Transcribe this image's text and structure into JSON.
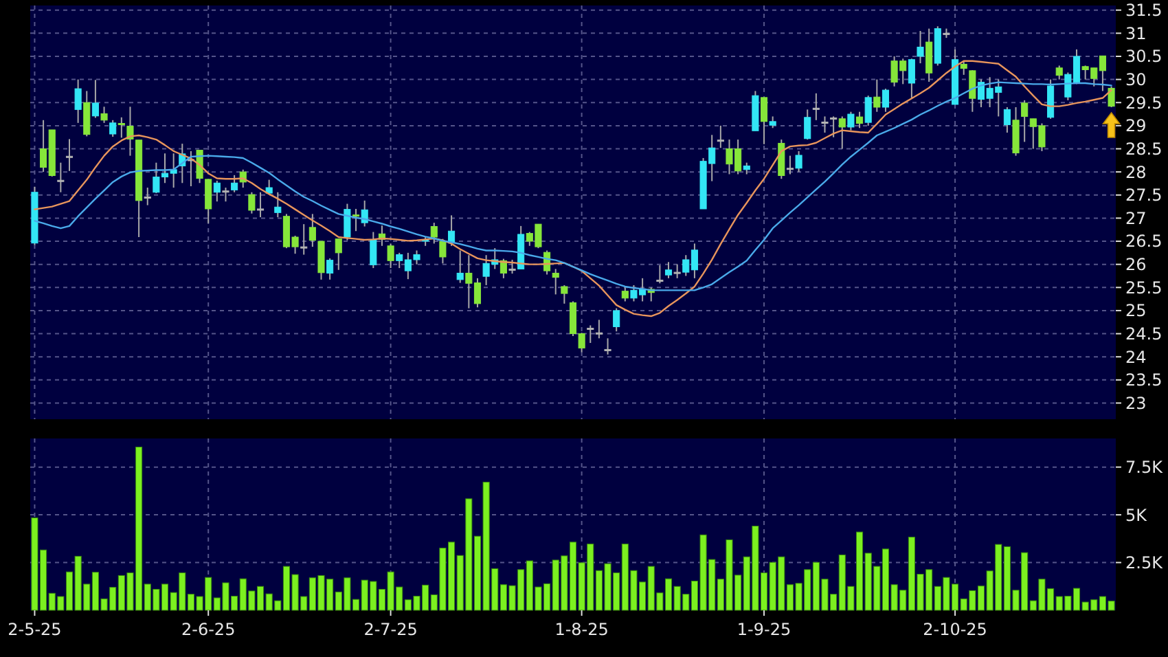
{
  "chart_data": [
    {
      "type": "candlestick",
      "tick_labels": "y",
      "grid": true,
      "categories": [
        null,
        null,
        null,
        null,
        null,
        null,
        null,
        null,
        null,
        null,
        null,
        null,
        null,
        null,
        null,
        null,
        null,
        null,
        null,
        null,
        null,
        null,
        null,
        null,
        null,
        null,
        null,
        null,
        null,
        null,
        null,
        null,
        null,
        null,
        null,
        null,
        null,
        null,
        null,
        null,
        null,
        null,
        null,
        null,
        null,
        null,
        null,
        null,
        null,
        null,
        null,
        null,
        null,
        null,
        null,
        null,
        null,
        null,
        null,
        null,
        null,
        null,
        null,
        null,
        null,
        null,
        null,
        null,
        null,
        null,
        null,
        null,
        null,
        null,
        null,
        null,
        null,
        null,
        null,
        null,
        null,
        null,
        null,
        null,
        null,
        null,
        null,
        null,
        null,
        null,
        null,
        null,
        null,
        null,
        null,
        null,
        null,
        null,
        null,
        null,
        null,
        null,
        null,
        null,
        null,
        null,
        null,
        null,
        null,
        null,
        null,
        null,
        null,
        null,
        null,
        null,
        null,
        null,
        null,
        null,
        null,
        null,
        null,
        null,
        null
      ],
      "ylim": [
        22.65,
        31.6
      ],
      "yticks": [
        23,
        23.5,
        24,
        24.5,
        25,
        25.5,
        26,
        26.5,
        27,
        27.5,
        28,
        28.5,
        29,
        29.5,
        30,
        30.5,
        31,
        31.5
      ],
      "ohlc": [
        [
          26.46,
          27.68,
          26.42,
          27.56
        ],
        [
          28.5,
          29.12,
          28.0,
          28.1
        ],
        [
          28.91,
          28.91,
          27.9,
          27.92
        ],
        [
          27.82,
          28.2,
          27.56,
          27.82
        ],
        [
          28.34,
          28.71,
          28.02,
          28.34
        ],
        [
          29.35,
          30.0,
          29.06,
          29.8
        ],
        [
          29.5,
          29.75,
          28.77,
          28.81
        ],
        [
          29.21,
          29.99,
          29.17,
          29.49
        ],
        [
          29.26,
          29.41,
          29.06,
          29.12
        ],
        [
          28.82,
          29.12,
          28.76,
          29.06
        ],
        [
          29.05,
          29.18,
          28.74,
          29.02
        ],
        [
          28.99,
          29.41,
          28.35,
          28.71
        ],
        [
          28.69,
          28.69,
          26.59,
          27.38
        ],
        [
          27.46,
          27.66,
          27.28,
          27.46
        ],
        [
          27.56,
          28.2,
          27.54,
          27.89
        ],
        [
          27.89,
          28.4,
          27.76,
          27.97
        ],
        [
          27.97,
          28.4,
          27.66,
          28.05
        ],
        [
          28.13,
          28.61,
          27.76,
          28.39
        ],
        [
          28.27,
          28.45,
          27.69,
          28.27
        ],
        [
          28.47,
          28.47,
          27.76,
          27.86
        ],
        [
          27.84,
          27.84,
          26.89,
          27.2
        ],
        [
          27.56,
          27.81,
          27.36,
          27.76
        ],
        [
          27.59,
          27.66,
          27.36,
          27.59
        ],
        [
          27.61,
          27.93,
          27.56,
          27.76
        ],
        [
          28.0,
          28.05,
          27.66,
          27.78
        ],
        [
          27.51,
          27.56,
          27.1,
          27.17
        ],
        [
          27.2,
          27.56,
          27.02,
          27.2
        ],
        [
          27.54,
          27.83,
          27.51,
          27.66
        ],
        [
          27.12,
          27.56,
          27.02,
          27.24
        ],
        [
          27.04,
          27.09,
          26.35,
          26.38
        ],
        [
          26.59,
          26.62,
          26.23,
          26.38
        ],
        [
          26.38,
          26.87,
          26.21,
          26.38
        ],
        [
          26.8,
          27.09,
          26.38,
          26.52
        ],
        [
          26.5,
          26.5,
          25.67,
          25.82
        ],
        [
          25.81,
          26.13,
          25.67,
          26.09
        ],
        [
          26.55,
          26.55,
          25.88,
          26.25
        ],
        [
          26.59,
          27.31,
          26.52,
          27.19
        ],
        [
          27.07,
          27.2,
          26.72,
          27.05
        ],
        [
          26.9,
          27.38,
          26.82,
          27.18
        ],
        [
          25.99,
          26.7,
          25.92,
          26.54
        ],
        [
          26.66,
          26.84,
          26.4,
          26.54
        ],
        [
          26.4,
          26.45,
          25.92,
          26.08
        ],
        [
          26.08,
          26.25,
          25.92,
          26.21
        ],
        [
          25.86,
          26.25,
          25.68,
          26.1
        ],
        [
          26.1,
          26.3,
          26.0,
          26.21
        ],
        [
          26.5,
          26.6,
          26.4,
          26.53
        ],
        [
          26.82,
          26.9,
          26.45,
          26.59
        ],
        [
          26.5,
          26.55,
          26.02,
          26.16
        ],
        [
          26.46,
          27.06,
          26.4,
          26.72
        ],
        [
          25.67,
          26.3,
          25.6,
          25.81
        ],
        [
          25.81,
          26.2,
          25.05,
          25.59
        ],
        [
          25.6,
          25.7,
          25.07,
          25.15
        ],
        [
          25.74,
          26.2,
          25.55,
          26.02
        ],
        [
          26.0,
          26.35,
          25.9,
          26.1
        ],
        [
          26.08,
          26.12,
          25.7,
          25.81
        ],
        [
          25.9,
          26.1,
          25.8,
          25.9
        ],
        [
          25.9,
          26.83,
          25.9,
          26.65
        ],
        [
          26.67,
          26.7,
          26.4,
          26.5
        ],
        [
          26.87,
          26.87,
          26.35,
          26.38
        ],
        [
          26.26,
          26.3,
          25.78,
          25.86
        ],
        [
          25.81,
          25.9,
          25.35,
          25.72
        ],
        [
          25.52,
          25.55,
          25.15,
          25.37
        ],
        [
          25.17,
          25.2,
          24.45,
          24.5
        ],
        [
          24.5,
          24.52,
          24.1,
          24.19
        ],
        [
          24.62,
          24.68,
          24.3,
          24.62
        ],
        [
          24.52,
          24.8,
          24.4,
          24.52
        ],
        [
          24.16,
          24.4,
          24.05,
          24.16
        ],
        [
          24.65,
          25.05,
          24.55,
          25.0
        ],
        [
          25.42,
          25.5,
          25.2,
          25.27
        ],
        [
          25.27,
          25.55,
          25.2,
          25.44
        ],
        [
          25.34,
          25.7,
          25.2,
          25.47
        ],
        [
          25.46,
          25.5,
          25.2,
          25.39
        ],
        [
          25.66,
          25.98,
          25.59,
          25.66
        ],
        [
          25.77,
          26.05,
          25.7,
          25.88
        ],
        [
          25.83,
          26.0,
          25.7,
          25.83
        ],
        [
          25.83,
          26.2,
          25.75,
          26.1
        ],
        [
          25.88,
          26.45,
          25.7,
          26.31
        ],
        [
          27.2,
          28.3,
          27.2,
          28.23
        ],
        [
          28.18,
          28.8,
          27.8,
          28.52
        ],
        [
          28.69,
          29.0,
          28.52,
          28.69
        ],
        [
          28.5,
          28.7,
          27.95,
          28.17
        ],
        [
          28.5,
          28.7,
          27.95,
          28.02
        ],
        [
          28.05,
          28.2,
          27.95,
          28.13
        ],
        [
          28.89,
          29.75,
          28.89,
          29.65
        ],
        [
          29.61,
          29.61,
          28.6,
          29.09
        ],
        [
          29.01,
          29.2,
          28.95,
          29.09
        ],
        [
          28.62,
          28.7,
          27.85,
          27.92
        ],
        [
          28.08,
          28.35,
          27.95,
          28.08
        ],
        [
          28.08,
          28.45,
          28.0,
          28.36
        ],
        [
          28.72,
          29.35,
          28.7,
          29.18
        ],
        [
          29.38,
          29.7,
          29.12,
          29.38
        ],
        [
          29.08,
          29.2,
          28.85,
          29.08
        ],
        [
          29.17,
          29.2,
          28.75,
          29.17
        ],
        [
          29.15,
          29.2,
          28.5,
          28.97
        ],
        [
          28.97,
          29.3,
          28.9,
          29.25
        ],
        [
          29.19,
          29.3,
          28.95,
          29.05
        ],
        [
          29.07,
          29.65,
          29.0,
          29.61
        ],
        [
          29.62,
          30.0,
          29.3,
          29.4
        ],
        [
          29.4,
          29.8,
          29.3,
          29.77
        ],
        [
          30.4,
          30.5,
          29.85,
          29.94
        ],
        [
          30.4,
          30.45,
          29.9,
          30.19
        ],
        [
          29.92,
          30.45,
          29.6,
          30.43
        ],
        [
          30.5,
          31.05,
          30.35,
          30.7
        ],
        [
          30.81,
          31.1,
          29.95,
          30.14
        ],
        [
          30.35,
          31.15,
          30.3,
          31.1
        ],
        [
          31.0,
          31.1,
          30.9,
          31.0
        ],
        [
          29.46,
          30.65,
          29.46,
          30.43
        ],
        [
          30.33,
          30.4,
          30.1,
          30.24
        ],
        [
          30.19,
          30.2,
          29.3,
          29.59
        ],
        [
          29.57,
          30.0,
          29.4,
          29.94
        ],
        [
          29.59,
          30.05,
          29.4,
          29.81
        ],
        [
          29.72,
          30.0,
          29.2,
          29.84
        ],
        [
          29.02,
          29.4,
          28.85,
          29.35
        ],
        [
          29.12,
          29.4,
          28.35,
          28.41
        ],
        [
          29.49,
          29.55,
          28.65,
          29.2
        ],
        [
          29.15,
          29.15,
          28.5,
          28.98
        ],
        [
          29.0,
          29.05,
          28.45,
          28.54
        ],
        [
          29.18,
          30.0,
          29.15,
          29.86
        ],
        [
          30.25,
          30.3,
          30.0,
          30.09
        ],
        [
          29.62,
          30.15,
          29.55,
          30.11
        ],
        [
          29.94,
          30.65,
          29.9,
          30.5
        ],
        [
          30.28,
          30.3,
          30.0,
          30.21
        ],
        [
          30.25,
          30.25,
          29.85,
          30.02
        ],
        [
          30.51,
          30.51,
          29.75,
          30.19
        ],
        [
          29.81,
          29.85,
          29.4,
          29.42
        ]
      ],
      "colors": [
        "#33e6f5",
        "#86e63a",
        "#86e63a",
        "#b4b4b4",
        "#b4b4b4",
        "#33e6f5",
        "#86e63a",
        "#33e6f5",
        "#86e63a",
        "#33e6f5",
        "#86e63a",
        "#86e63a",
        "#86e63a",
        "#b4b4b4",
        "#33e6f5",
        "#33e6f5",
        "#33e6f5",
        "#33e6f5",
        "#b4b4b4",
        "#86e63a",
        "#86e63a",
        "#33e6f5",
        "#b4b4b4",
        "#33e6f5",
        "#86e63a",
        "#86e63a",
        "#b4b4b4",
        "#33e6f5",
        "#33e6f5",
        "#86e63a",
        "#86e63a",
        "#b4b4b4",
        "#86e63a",
        "#86e63a",
        "#33e6f5",
        "#86e63a",
        "#33e6f5",
        "#86e63a",
        "#33e6f5",
        "#33e6f5",
        "#86e63a",
        "#86e63a",
        "#33e6f5",
        "#33e6f5",
        "#33e6f5",
        "#33e6f5",
        "#86e63a",
        "#86e63a",
        "#33e6f5",
        "#33e6f5",
        "#86e63a",
        "#86e63a",
        "#33e6f5",
        "#33e6f5",
        "#86e63a",
        "#b4b4b4",
        "#33e6f5",
        "#86e63a",
        "#86e63a",
        "#86e63a",
        "#86e63a",
        "#86e63a",
        "#86e63a",
        "#86e63a",
        "#b4b4b4",
        "#b4b4b4",
        "#b4b4b4",
        "#33e6f5",
        "#86e63a",
        "#33e6f5",
        "#33e6f5",
        "#86e63a",
        "#b4b4b4",
        "#33e6f5",
        "#b4b4b4",
        "#33e6f5",
        "#33e6f5",
        "#33e6f5",
        "#33e6f5",
        "#b4b4b4",
        "#86e63a",
        "#86e63a",
        "#33e6f5",
        "#33e6f5",
        "#86e63a",
        "#33e6f5",
        "#86e63a",
        "#b4b4b4",
        "#33e6f5",
        "#33e6f5",
        "#b4b4b4",
        "#b4b4b4",
        "#b4b4b4",
        "#86e63a",
        "#33e6f5",
        "#86e63a",
        "#33e6f5",
        "#86e63a",
        "#33e6f5",
        "#86e63a",
        "#86e63a",
        "#33e6f5",
        "#33e6f5",
        "#86e63a",
        "#33e6f5",
        "#b4b4b4",
        "#33e6f5",
        "#86e63a",
        "#86e63a",
        "#33e6f5",
        "#33e6f5",
        "#33e6f5",
        "#33e6f5",
        "#86e63a",
        "#86e63a",
        "#86e63a",
        "#86e63a",
        "#33e6f5",
        "#86e63a",
        "#33e6f5",
        "#33e6f5",
        "#86e63a",
        "#86e63a",
        "#86e63a",
        "#86e63a"
      ],
      "series": [
        {
          "type": "line",
          "color": "#e8955c",
          "values": [
            27.19,
            27.22,
            27.25,
            27.31,
            27.37,
            27.6,
            27.83,
            28.1,
            28.35,
            28.55,
            28.68,
            28.77,
            28.79,
            28.75,
            28.7,
            28.58,
            28.45,
            28.37,
            28.29,
            28.15,
            27.97,
            27.86,
            27.85,
            27.85,
            27.86,
            27.76,
            27.63,
            27.52,
            27.42,
            27.31,
            27.19,
            27.07,
            26.95,
            26.84,
            26.72,
            26.59,
            26.57,
            26.55,
            26.53,
            26.54,
            26.56,
            26.55,
            26.53,
            26.51,
            26.52,
            26.54,
            26.56,
            26.52,
            26.45,
            26.33,
            26.23,
            26.13,
            26.09,
            26.07,
            26.05,
            26.04,
            26.02,
            26.0,
            26.0,
            26.01,
            26.02,
            26.03,
            25.95,
            25.86,
            25.7,
            25.54,
            25.33,
            25.12,
            25.02,
            24.93,
            24.9,
            24.88,
            24.95,
            25.1,
            25.23,
            25.37,
            25.52,
            25.8,
            26.1,
            26.44,
            26.76,
            27.07,
            27.33,
            27.6,
            27.85,
            28.15,
            28.45,
            28.55,
            28.57,
            28.58,
            28.63,
            28.73,
            28.83,
            28.9,
            28.88,
            28.86,
            28.85,
            29.04,
            29.24,
            29.36,
            29.48,
            29.59,
            29.7,
            29.82,
            29.98,
            30.14,
            30.28,
            30.4,
            30.4,
            30.38,
            30.36,
            30.34,
            30.2,
            30.06,
            29.85,
            29.65,
            29.46,
            29.42,
            29.42,
            29.45,
            29.49,
            29.52,
            29.56,
            29.6,
            29.77
          ]
        },
        {
          "type": "line",
          "color": "#4aaaea",
          "values": [
            26.94,
            26.89,
            26.83,
            26.78,
            26.83,
            27.04,
            27.23,
            27.42,
            27.6,
            27.78,
            27.9,
            27.99,
            28.02,
            28.03,
            28.04,
            28.04,
            28.05,
            28.19,
            28.33,
            28.34,
            28.35,
            28.34,
            28.33,
            28.32,
            28.3,
            28.2,
            28.09,
            27.98,
            27.84,
            27.71,
            27.58,
            27.46,
            27.37,
            27.27,
            27.18,
            27.09,
            27.05,
            27.01,
            26.98,
            26.93,
            26.88,
            26.82,
            26.77,
            26.71,
            26.65,
            26.6,
            26.56,
            26.51,
            26.48,
            26.44,
            26.39,
            26.34,
            26.3,
            26.3,
            26.29,
            26.28,
            26.25,
            26.2,
            26.16,
            26.12,
            26.09,
            26.03,
            25.95,
            25.87,
            25.79,
            25.72,
            25.65,
            25.58,
            25.52,
            25.49,
            25.47,
            25.44,
            25.44,
            25.44,
            25.44,
            25.44,
            25.44,
            25.5,
            25.57,
            25.7,
            25.83,
            25.95,
            26.08,
            26.31,
            26.53,
            26.78,
            26.95,
            27.12,
            27.28,
            27.45,
            27.62,
            27.79,
            27.97,
            28.16,
            28.33,
            28.48,
            28.63,
            28.79,
            28.87,
            28.95,
            29.04,
            29.13,
            29.24,
            29.33,
            29.43,
            29.52,
            29.6,
            29.7,
            29.8,
            29.87,
            29.91,
            29.94,
            29.93,
            29.92,
            29.91,
            29.9,
            29.9,
            29.89,
            29.9,
            29.91,
            29.92,
            29.92,
            29.9,
            29.89,
            29.87
          ]
        }
      ]
    },
    {
      "type": "bar",
      "grid": true,
      "color": "#7cf020",
      "categories": [
        "2-5-25",
        null,
        null,
        null,
        null,
        null,
        null,
        null,
        null,
        null,
        null,
        null,
        null,
        null,
        null,
        null,
        null,
        null,
        null,
        null,
        "2-6-25",
        null,
        null,
        null,
        null,
        null,
        null,
        null,
        null,
        null,
        null,
        null,
        null,
        null,
        null,
        null,
        null,
        null,
        null,
        null,
        null,
        "2-7-25",
        null,
        null,
        null,
        null,
        null,
        null,
        null,
        null,
        null,
        null,
        null,
        null,
        null,
        null,
        null,
        null,
        null,
        null,
        null,
        null,
        null,
        "1-8-25",
        null,
        null,
        null,
        null,
        null,
        null,
        null,
        null,
        null,
        null,
        null,
        null,
        null,
        null,
        null,
        null,
        null,
        null,
        null,
        null,
        "1-9-25",
        null,
        null,
        null,
        null,
        null,
        null,
        null,
        null,
        null,
        null,
        null,
        null,
        null,
        null,
        null,
        null,
        null,
        null,
        null,
        null,
        null,
        "2-10-25",
        null,
        null,
        null,
        null,
        null,
        null,
        null,
        null,
        null,
        null,
        null,
        null,
        null,
        null,
        null,
        null,
        null,
        null
      ],
      "ylim": [
        0,
        9000
      ],
      "yticks": [
        {
          "value": 2500,
          "label": "2.5K"
        },
        {
          "value": 5000,
          "label": "5K"
        },
        {
          "value": 7500,
          "label": "7.5K"
        }
      ],
      "values": [
        4840,
        3160,
        890,
        720,
        2010,
        2830,
        1370,
        1990,
        600,
        1200,
        1820,
        1960,
        8550,
        1370,
        1100,
        1370,
        930,
        1960,
        840,
        720,
        1720,
        650,
        1440,
        740,
        1650,
        1010,
        1250,
        860,
        500,
        2300,
        1870,
        720,
        1700,
        1820,
        1630,
        960,
        1700,
        570,
        1580,
        1510,
        1100,
        2010,
        1220,
        550,
        740,
        1320,
        810,
        3260,
        3570,
        2870,
        5840,
        3880,
        6710,
        2180,
        1340,
        1290,
        2130,
        2590,
        1220,
        1390,
        2630,
        2850,
        3570,
        2490,
        3470,
        2080,
        2440,
        1960,
        3470,
        2080,
        1480,
        2300,
        910,
        1650,
        1250,
        840,
        1530,
        3950,
        2660,
        1630,
        3690,
        1840,
        2800,
        4410,
        1960,
        2510,
        2800,
        1340,
        1410,
        2130,
        2510,
        1630,
        840,
        2900,
        1250,
        4100,
        2990,
        2300,
        3210,
        1340,
        1050,
        3830,
        1890,
        2130,
        1250,
        1720,
        1370,
        600,
        1030,
        1270,
        2060,
        3450,
        3330,
        1050,
        3020,
        500,
        1630,
        1130,
        720,
        740,
        1150,
        430,
        550,
        720,
        480
      ]
    }
  ]
}
